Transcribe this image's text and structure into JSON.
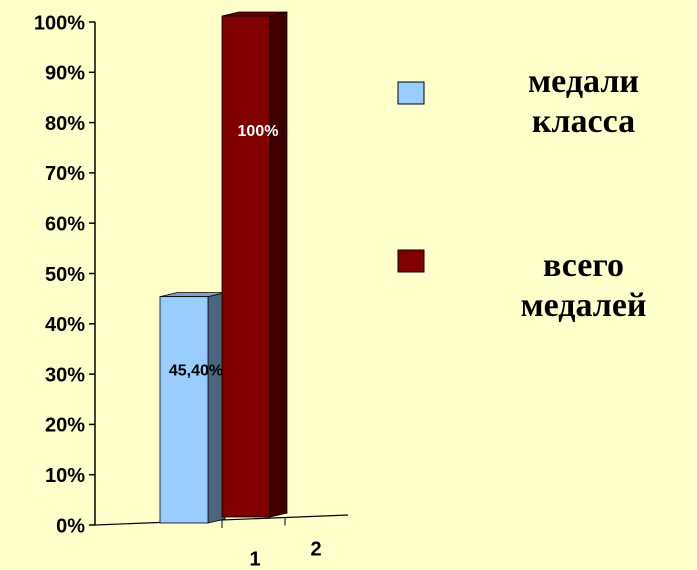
{
  "chart_data": {
    "type": "bar3d",
    "categories": [
      "1",
      "2"
    ],
    "series": [
      {
        "name": "медали класса",
        "color": "#99ccff",
        "values": [
          45.4,
          null
        ],
        "value_labels": [
          "45,40%",
          null
        ]
      },
      {
        "name": "всего медалей",
        "color": "#800000",
        "values": [
          null,
          100
        ],
        "value_labels": [
          null,
          "100%"
        ]
      }
    ],
    "ylim": [
      0,
      100
    ],
    "yticks": [
      {
        "value": 0,
        "label": "0%"
      },
      {
        "value": 10,
        "label": "10%"
      },
      {
        "value": 20,
        "label": "20%"
      },
      {
        "value": 30,
        "label": "30%"
      },
      {
        "value": 40,
        "label": "40%"
      },
      {
        "value": 50,
        "label": "50%"
      },
      {
        "value": 60,
        "label": "60%"
      },
      {
        "value": 70,
        "label": "70%"
      },
      {
        "value": 80,
        "label": "80%"
      },
      {
        "value": 90,
        "label": "90%"
      },
      {
        "value": 100,
        "label": "100%"
      }
    ],
    "legend": "right"
  }
}
